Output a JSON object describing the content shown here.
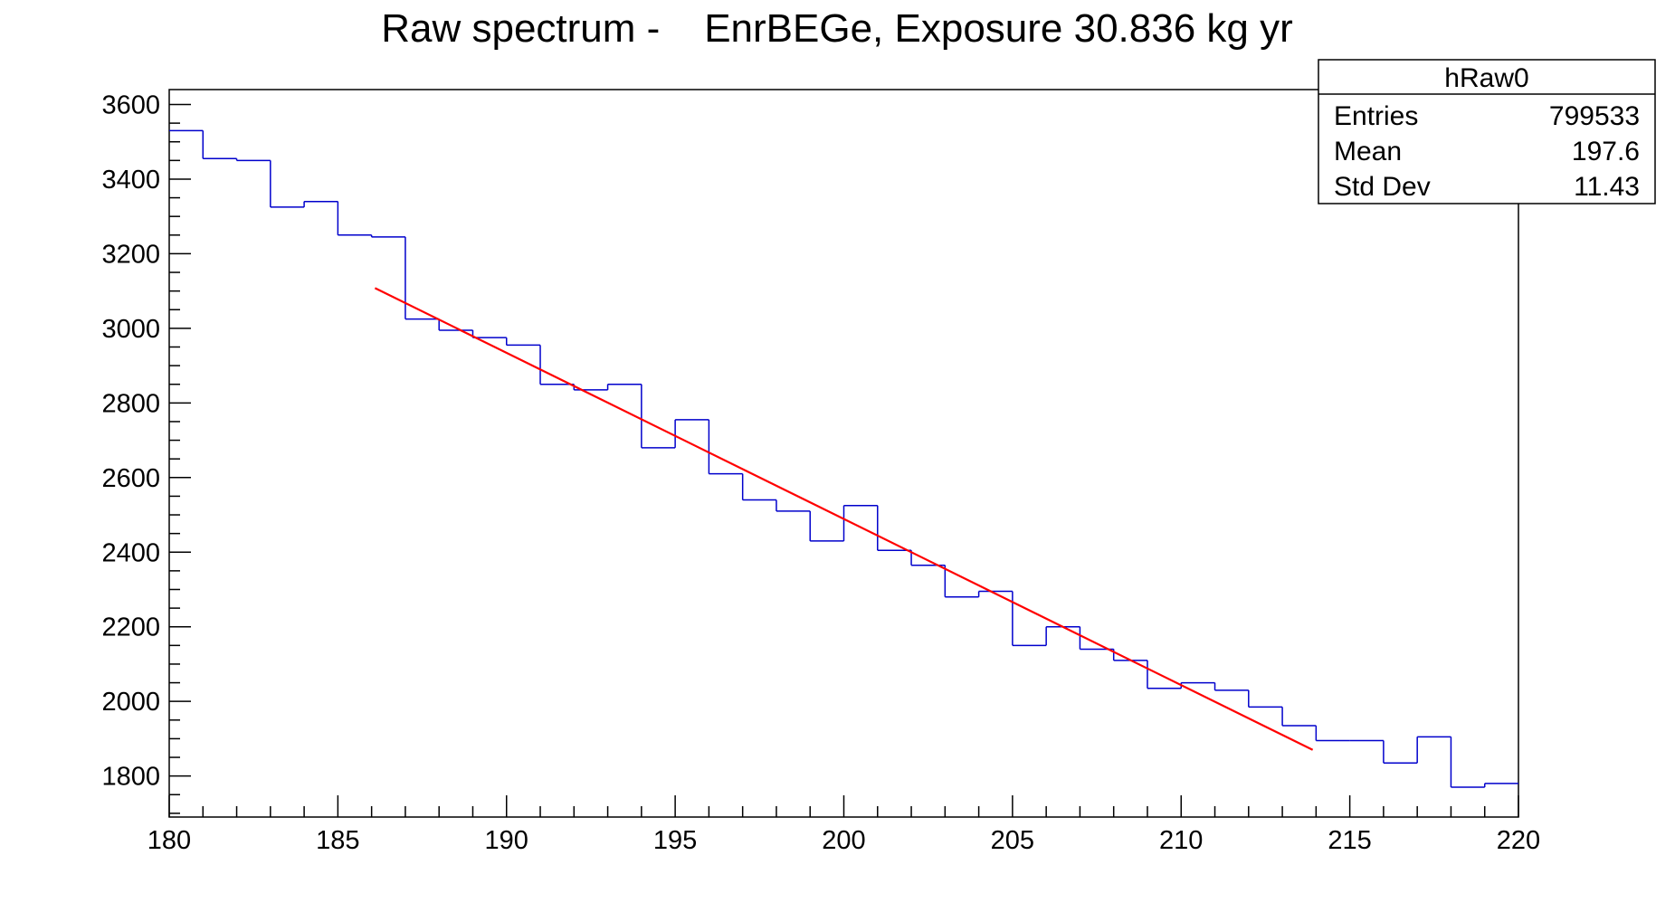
{
  "chart_data": {
    "type": "histogram",
    "title": "Raw spectrum -    EnrBEGe, Exposure 30.836 kg yr",
    "xlabel": "",
    "ylabel": "",
    "xlim": [
      180,
      220
    ],
    "ylim": [
      1690,
      3640
    ],
    "x_ticks": [
      180,
      185,
      190,
      195,
      200,
      205,
      210,
      215,
      220
    ],
    "y_ticks": [
      1800,
      2000,
      2200,
      2400,
      2600,
      2800,
      3000,
      3200,
      3400,
      3600
    ],
    "grid": false,
    "series": [
      {
        "color": "#0000cc",
        "style": "histogram-step",
        "bin_edges": [
          180,
          181,
          182,
          183,
          184,
          185,
          186,
          187,
          188,
          189,
          190,
          191,
          192,
          193,
          194,
          195,
          196,
          197,
          198,
          199,
          200,
          201,
          202,
          203,
          204,
          205,
          206,
          207,
          208,
          209,
          210,
          211,
          212,
          213,
          214,
          215,
          216,
          217,
          218,
          219,
          220
        ],
        "values": [
          3530,
          3455,
          3450,
          3325,
          3340,
          3250,
          3245,
          3025,
          2995,
          2975,
          2955,
          2850,
          2835,
          2850,
          2680,
          2755,
          2610,
          2540,
          2510,
          2430,
          2525,
          2405,
          2365,
          2280,
          2295,
          2150,
          2200,
          2140,
          2110,
          2035,
          2050,
          2030,
          1985,
          1935,
          1895,
          1895,
          1835,
          1905,
          1770,
          1780
        ]
      },
      {
        "color": "#ff0000",
        "style": "line",
        "x": [
          186.1,
          213.9
        ],
        "y": [
          3108,
          1870
        ]
      }
    ],
    "stats_box": {
      "name": "hRaw0",
      "rows": [
        {
          "label": "Entries",
          "value": "799533"
        },
        {
          "label": "Mean",
          "value": "197.6"
        },
        {
          "label": "Std Dev",
          "value": "11.43"
        }
      ]
    }
  }
}
